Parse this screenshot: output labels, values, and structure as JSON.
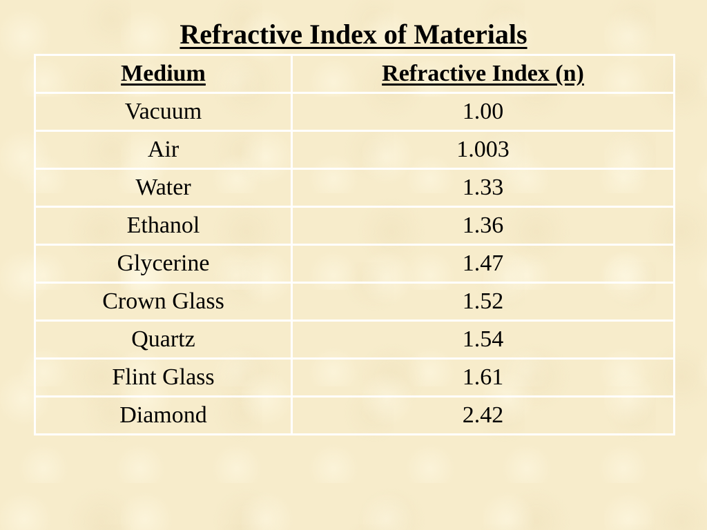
{
  "title": "Refractive Index of Materials",
  "table": {
    "headers": [
      "Medium",
      "Refractive Index (n)"
    ],
    "rows": [
      [
        "Vacuum",
        "1.00"
      ],
      [
        "Air",
        "1.003"
      ],
      [
        "Water",
        "1.33"
      ],
      [
        "Ethanol",
        "1.36"
      ],
      [
        "Glycerine",
        "1.47"
      ],
      [
        "Crown Glass",
        "1.52"
      ],
      [
        "Quartz",
        "1.54"
      ],
      [
        "Flint Glass",
        "1.61"
      ],
      [
        "Diamond",
        "2.42"
      ]
    ]
  },
  "colors": {
    "background": "#f7eccb",
    "grid_lines": "#ffffff",
    "text": "#000000"
  }
}
